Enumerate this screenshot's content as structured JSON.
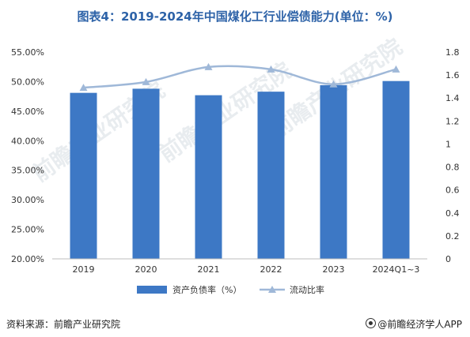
{
  "title": "图表4：2019-2024年中国煤化工行业偿债能力(单位：%)",
  "source": "资料来源：前瞻产业研究院",
  "brand": "@前瞻经济学人APP",
  "watermark": "前瞻产业研究院",
  "colors": {
    "bar": "#3d78c5",
    "line": "#9fb8d8",
    "title": "#2e63a8"
  },
  "chart_data": {
    "type": "bar",
    "categories": [
      "2019",
      "2020",
      "2021",
      "2022",
      "2023",
      "2024Q1~3"
    ],
    "series": [
      {
        "name": "资产负债率（%）",
        "type": "bar",
        "axis": "left",
        "values": [
          48.1,
          48.8,
          47.7,
          48.3,
          49.4,
          50.1
        ]
      },
      {
        "name": "流动比率",
        "type": "line",
        "axis": "right",
        "values": [
          1.49,
          1.54,
          1.67,
          1.65,
          1.52,
          1.65
        ]
      }
    ],
    "y_left": {
      "min": 20,
      "max": 55,
      "step": 5,
      "ticks": [
        "20.00%",
        "25.00%",
        "30.00%",
        "35.00%",
        "40.00%",
        "45.00%",
        "50.00%",
        "55.00%"
      ]
    },
    "y_right": {
      "min": 0,
      "max": 1.8,
      "step": 0.2,
      "ticks": [
        "0",
        "0.2",
        "0.4",
        "0.6",
        "0.8",
        "1",
        "1.2",
        "1.4",
        "1.6",
        "1.8"
      ]
    },
    "legend_position": "bottom",
    "grid": false
  }
}
